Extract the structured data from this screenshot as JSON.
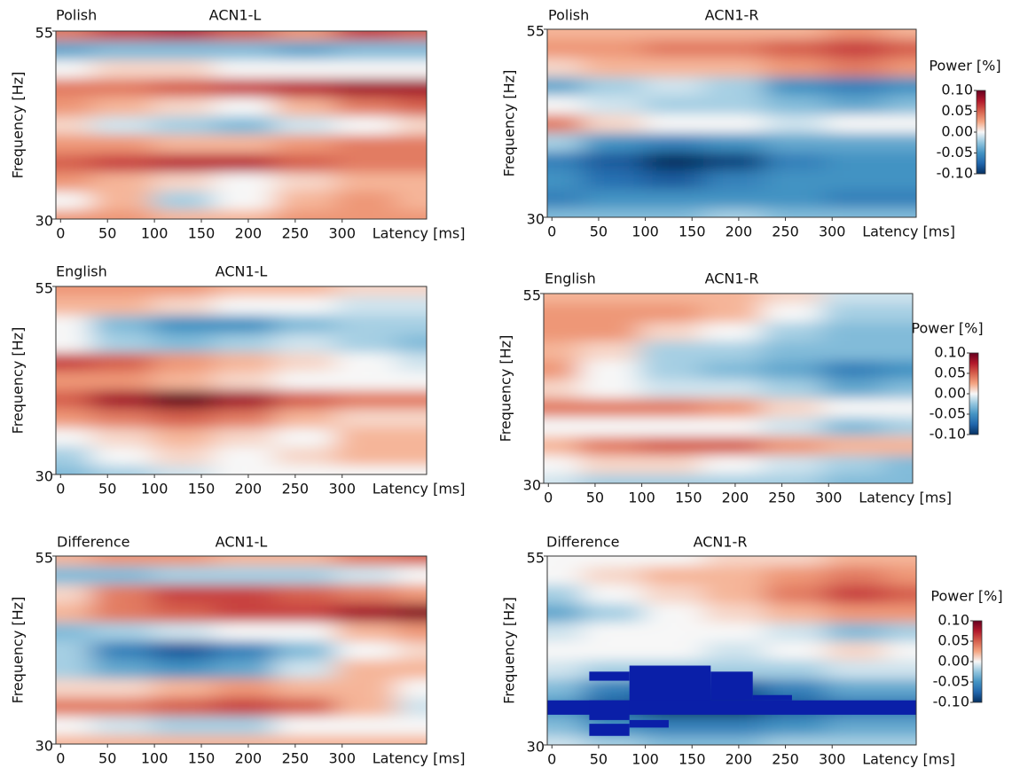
{
  "chart_data": [
    {
      "type": "heatmap",
      "label": "Polish",
      "title": "ACN1-L",
      "xlabel": "Latency [ms]",
      "ylabel": "Frequency [Hz]",
      "xlim": [
        -5,
        390
      ],
      "ylim": [
        30,
        55
      ],
      "xticks": [
        0,
        50,
        100,
        150,
        200,
        250,
        300
      ],
      "yticks": [
        30,
        55
      ],
      "clim": [
        -0.1,
        0.1
      ],
      "x": [
        0,
        65,
        130,
        195,
        260,
        325,
        390
      ],
      "y": [
        30,
        32.5,
        35,
        37.5,
        40,
        42.5,
        45,
        47.5,
        50,
        52.5,
        55
      ],
      "z": [
        [
          0.03,
          0.03,
          0.02,
          0.02,
          0.03,
          0.03,
          0.03
        ],
        [
          0.0,
          0.02,
          -0.02,
          0.0,
          0.02,
          0.03,
          0.02
        ],
        [
          0.03,
          0.02,
          0.01,
          0.0,
          0.01,
          0.02,
          0.02
        ],
        [
          0.05,
          0.06,
          0.07,
          0.07,
          0.05,
          0.04,
          0.04
        ],
        [
          0.03,
          0.03,
          0.02,
          0.02,
          0.03,
          0.04,
          0.04
        ],
        [
          0.01,
          -0.01,
          -0.02,
          -0.03,
          -0.01,
          0.0,
          0.01
        ],
        [
          0.03,
          0.02,
          0.01,
          0.0,
          0.02,
          0.04,
          0.05
        ],
        [
          0.04,
          0.04,
          0.05,
          0.06,
          0.07,
          0.08,
          0.08
        ],
        [
          0.0,
          0.01,
          0.01,
          0.0,
          0.0,
          0.0,
          0.0
        ],
        [
          -0.04,
          -0.03,
          -0.03,
          -0.03,
          -0.04,
          -0.03,
          -0.03
        ],
        [
          0.04,
          0.06,
          0.07,
          0.05,
          0.03,
          0.06,
          0.05
        ]
      ]
    },
    {
      "type": "heatmap",
      "label": "Polish",
      "title": "ACN1-R",
      "xlabel": "Latency [ms]",
      "ylabel": "Frequency [Hz]",
      "xlim": [
        -5,
        390
      ],
      "ylim": [
        30,
        55
      ],
      "xticks": [
        0,
        50,
        100,
        150,
        200,
        250,
        300
      ],
      "yticks": [
        30,
        55
      ],
      "clim": [
        -0.1,
        0.1
      ],
      "x": [
        0,
        65,
        130,
        195,
        260,
        325,
        390
      ],
      "y": [
        30,
        32.5,
        35,
        37.5,
        40,
        42.5,
        45,
        47.5,
        50,
        52.5,
        55
      ],
      "z": [
        [
          -0.03,
          -0.03,
          -0.03,
          -0.02,
          -0.03,
          -0.03,
          -0.03
        ],
        [
          -0.06,
          -0.05,
          -0.05,
          -0.05,
          -0.05,
          -0.06,
          -0.06
        ],
        [
          -0.05,
          -0.07,
          -0.08,
          -0.06,
          -0.05,
          -0.05,
          -0.05
        ],
        [
          -0.06,
          -0.08,
          -0.1,
          -0.09,
          -0.06,
          -0.05,
          -0.05
        ],
        [
          -0.02,
          -0.05,
          -0.06,
          -0.05,
          -0.04,
          -0.04,
          -0.04
        ],
        [
          0.04,
          0.01,
          0.0,
          0.0,
          -0.01,
          0.0,
          0.0
        ],
        [
          0.0,
          -0.01,
          -0.02,
          -0.02,
          -0.03,
          -0.04,
          -0.03
        ],
        [
          -0.04,
          -0.02,
          -0.01,
          -0.02,
          -0.05,
          -0.06,
          -0.05
        ],
        [
          0.01,
          0.02,
          0.02,
          0.02,
          0.03,
          0.04,
          0.03
        ],
        [
          0.03,
          0.03,
          0.04,
          0.04,
          0.05,
          0.06,
          0.05
        ],
        [
          0.02,
          0.02,
          0.02,
          0.02,
          0.02,
          0.03,
          0.02
        ]
      ],
      "colorbar": {
        "title": "Power [%]",
        "ticks": [
          {
            "value": 0.1,
            "label": "0.10"
          },
          {
            "value": 0.05,
            "label": "0.05"
          },
          {
            "value": 0,
            "label": "0.00"
          },
          {
            "value": -0.05,
            "label": "-0.05"
          },
          {
            "value": -0.1,
            "label": "-0.10"
          }
        ]
      }
    },
    {
      "type": "heatmap",
      "label": "English",
      "title": "ACN1-L",
      "xlabel": "Latency [ms]",
      "ylabel": "Frequency [Hz]",
      "xlim": [
        -5,
        390
      ],
      "ylim": [
        30,
        55
      ],
      "xticks": [
        0,
        50,
        100,
        150,
        200,
        250,
        300
      ],
      "yticks": [
        30,
        55
      ],
      "clim": [
        -0.1,
        0.1
      ],
      "x": [
        0,
        65,
        130,
        195,
        260,
        325,
        390
      ],
      "y": [
        30,
        32.5,
        35,
        37.5,
        40,
        42.5,
        45,
        47.5,
        50,
        52.5,
        55
      ],
      "z": [
        [
          -0.03,
          -0.02,
          -0.01,
          0.0,
          0.0,
          0.0,
          0.0
        ],
        [
          -0.02,
          0.0,
          0.01,
          0.0,
          0.01,
          0.02,
          0.02
        ],
        [
          0.0,
          0.01,
          0.02,
          0.01,
          0.0,
          0.02,
          0.02
        ],
        [
          0.03,
          0.04,
          0.05,
          0.04,
          0.02,
          0.01,
          0.01
        ],
        [
          0.05,
          0.08,
          0.1,
          0.08,
          0.05,
          0.04,
          0.04
        ],
        [
          0.03,
          0.03,
          0.02,
          0.01,
          0.0,
          0.0,
          0.0
        ],
        [
          0.06,
          0.05,
          0.03,
          0.02,
          0.01,
          0.0,
          -0.01
        ],
        [
          0.0,
          -0.02,
          -0.03,
          -0.02,
          -0.01,
          -0.02,
          -0.03
        ],
        [
          0.0,
          -0.03,
          -0.05,
          -0.05,
          -0.03,
          -0.02,
          -0.02
        ],
        [
          0.02,
          0.02,
          0.01,
          0.0,
          0.0,
          -0.01,
          -0.01
        ],
        [
          0.03,
          0.03,
          0.03,
          0.02,
          0.02,
          0.01,
          0.01
        ]
      ]
    },
    {
      "type": "heatmap",
      "label": "English",
      "title": "ACN1-R",
      "xlabel": "Latency [ms]",
      "ylabel": "Frequency [Hz]",
      "xlim": [
        -5,
        390
      ],
      "ylim": [
        30,
        55
      ],
      "xticks": [
        0,
        50,
        100,
        150,
        200,
        250,
        300
      ],
      "yticks": [
        30,
        55
      ],
      "clim": [
        -0.1,
        0.1
      ],
      "x": [
        0,
        65,
        130,
        195,
        260,
        325,
        390
      ],
      "y": [
        30,
        32.5,
        35,
        37.5,
        40,
        42.5,
        45,
        47.5,
        50,
        52.5,
        55
      ],
      "z": [
        [
          -0.01,
          -0.02,
          -0.02,
          -0.02,
          -0.02,
          -0.03,
          -0.03
        ],
        [
          0.0,
          0.01,
          0.01,
          0.0,
          -0.01,
          -0.02,
          -0.03
        ],
        [
          0.02,
          0.04,
          0.05,
          0.05,
          0.03,
          0.02,
          0.02
        ],
        [
          0.0,
          0.0,
          0.0,
          0.0,
          -0.01,
          -0.03,
          -0.02
        ],
        [
          0.04,
          0.04,
          0.04,
          0.03,
          0.01,
          0.0,
          0.0
        ],
        [
          0.01,
          0.0,
          -0.01,
          -0.01,
          -0.02,
          -0.04,
          -0.03
        ],
        [
          0.03,
          0.0,
          -0.02,
          -0.03,
          -0.04,
          -0.06,
          -0.05
        ],
        [
          0.02,
          0.01,
          -0.02,
          -0.02,
          -0.03,
          -0.03,
          -0.03
        ],
        [
          0.03,
          0.03,
          0.01,
          0.0,
          -0.02,
          -0.03,
          -0.03
        ],
        [
          0.03,
          0.03,
          0.03,
          0.02,
          0.0,
          -0.02,
          -0.02
        ],
        [
          0.02,
          0.02,
          0.02,
          0.02,
          0.01,
          -0.01,
          -0.01
        ]
      ],
      "colorbar": {
        "title": "Power [%]",
        "ticks": [
          {
            "value": 0.1,
            "label": "0.10"
          },
          {
            "value": 0.05,
            "label": "0.05"
          },
          {
            "value": 0,
            "label": "0.00"
          },
          {
            "value": -0.05,
            "label": "-0.05"
          },
          {
            "value": -0.1,
            "label": "-0.10"
          }
        ]
      }
    },
    {
      "type": "heatmap",
      "label": "Difference",
      "title": "ACN1-L",
      "xlabel": "Latency [ms]",
      "ylabel": "Frequency [Hz]",
      "xlim": [
        -5,
        390
      ],
      "ylim": [
        30,
        55
      ],
      "xticks": [
        0,
        50,
        100,
        150,
        200,
        250,
        300
      ],
      "yticks": [
        30,
        55
      ],
      "clim": [
        -0.1,
        0.1
      ],
      "x": [
        0,
        65,
        130,
        195,
        260,
        325,
        390
      ],
      "y": [
        30,
        32.5,
        35,
        37.5,
        40,
        42.5,
        45,
        47.5,
        50,
        52.5,
        55
      ],
      "z": [
        [
          0.02,
          0.02,
          0.02,
          0.02,
          0.02,
          0.02,
          0.02
        ],
        [
          0.0,
          -0.01,
          -0.02,
          -0.02,
          0.0,
          0.0,
          0.0
        ],
        [
          0.04,
          0.04,
          0.05,
          0.06,
          0.05,
          0.02,
          -0.01
        ],
        [
          0.01,
          0.01,
          0.02,
          0.03,
          0.02,
          0.02,
          0.0
        ],
        [
          -0.02,
          -0.04,
          -0.05,
          -0.04,
          -0.01,
          0.02,
          0.02
        ],
        [
          -0.02,
          -0.06,
          -0.08,
          -0.06,
          -0.03,
          0.0,
          0.01
        ],
        [
          -0.03,
          -0.02,
          -0.01,
          0.0,
          0.0,
          0.02,
          0.03
        ],
        [
          0.02,
          0.04,
          0.05,
          0.06,
          0.06,
          0.08,
          0.09
        ],
        [
          0.01,
          0.04,
          0.06,
          0.06,
          0.05,
          0.04,
          0.03
        ],
        [
          -0.03,
          -0.03,
          -0.02,
          -0.02,
          -0.02,
          -0.01,
          0.0
        ],
        [
          0.02,
          0.03,
          0.03,
          0.02,
          0.02,
          0.04,
          0.05
        ]
      ]
    },
    {
      "type": "heatmap",
      "label": "Difference",
      "title": "ACN1-R",
      "xlabel": "Latency [ms]",
      "ylabel": "Frequency [Hz]",
      "xlim": [
        -5,
        390
      ],
      "ylim": [
        30,
        55
      ],
      "xticks": [
        0,
        50,
        100,
        150,
        200,
        250,
        300
      ],
      "yticks": [
        30,
        55
      ],
      "clim": [
        -0.1,
        0.1
      ],
      "x": [
        0,
        65,
        130,
        195,
        260,
        325,
        390
      ],
      "y": [
        30,
        32.5,
        35,
        37.5,
        40,
        42.5,
        45,
        47.5,
        50,
        52.5,
        55
      ],
      "z": [
        [
          -0.01,
          -0.02,
          -0.03,
          -0.03,
          -0.02,
          -0.02,
          -0.02
        ],
        [
          -0.03,
          -0.05,
          -0.06,
          -0.06,
          -0.05,
          -0.04,
          -0.04
        ],
        [
          -0.05,
          -0.08,
          -0.1,
          -0.1,
          -0.08,
          -0.07,
          -0.07
        ],
        [
          -0.03,
          -0.06,
          -0.08,
          -0.08,
          -0.06,
          -0.04,
          -0.04
        ],
        [
          -0.01,
          -0.02,
          -0.02,
          -0.02,
          -0.02,
          -0.01,
          -0.01
        ],
        [
          0.0,
          0.0,
          0.0,
          -0.01,
          0.0,
          0.01,
          0.0
        ],
        [
          -0.01,
          0.0,
          0.0,
          0.0,
          -0.01,
          -0.03,
          -0.02
        ],
        [
          -0.04,
          -0.02,
          0.0,
          0.01,
          0.02,
          0.03,
          0.03
        ],
        [
          -0.02,
          0.0,
          0.01,
          0.02,
          0.04,
          0.06,
          0.05
        ],
        [
          0.0,
          0.01,
          0.02,
          0.02,
          0.03,
          0.04,
          0.03
        ],
        [
          0.0,
          0.0,
          0.0,
          0.01,
          0.01,
          0.02,
          0.02
        ]
      ],
      "mask_color": "#0a1fa8",
      "masks": [
        {
          "x": [
            40,
            83
          ],
          "y": [
            38.5,
            39.7
          ]
        },
        {
          "x": [
            83,
            170
          ],
          "y": [
            35.6,
            40.5
          ]
        },
        {
          "x": [
            170,
            215
          ],
          "y": [
            35.9,
            39.7
          ]
        },
        {
          "x": [
            -5,
            390
          ],
          "y": [
            34.0,
            35.9
          ]
        },
        {
          "x": [
            215,
            257
          ],
          "y": [
            35.9,
            36.6
          ]
        },
        {
          "x": [
            40,
            83
          ],
          "y": [
            33.3,
            35.9
          ]
        },
        {
          "x": [
            40,
            83
          ],
          "y": [
            31.2,
            32.8
          ]
        },
        {
          "x": [
            83,
            125
          ],
          "y": [
            32.3,
            33.3
          ]
        }
      ],
      "colorbar": {
        "title": "Power [%]",
        "ticks": [
          {
            "value": 0.1,
            "label": "0.10"
          },
          {
            "value": 0.05,
            "label": "0.05"
          },
          {
            "value": 0,
            "label": "0.00"
          },
          {
            "value": -0.05,
            "label": "-0.05"
          },
          {
            "value": -0.1,
            "label": "-0.10"
          }
        ]
      }
    }
  ]
}
